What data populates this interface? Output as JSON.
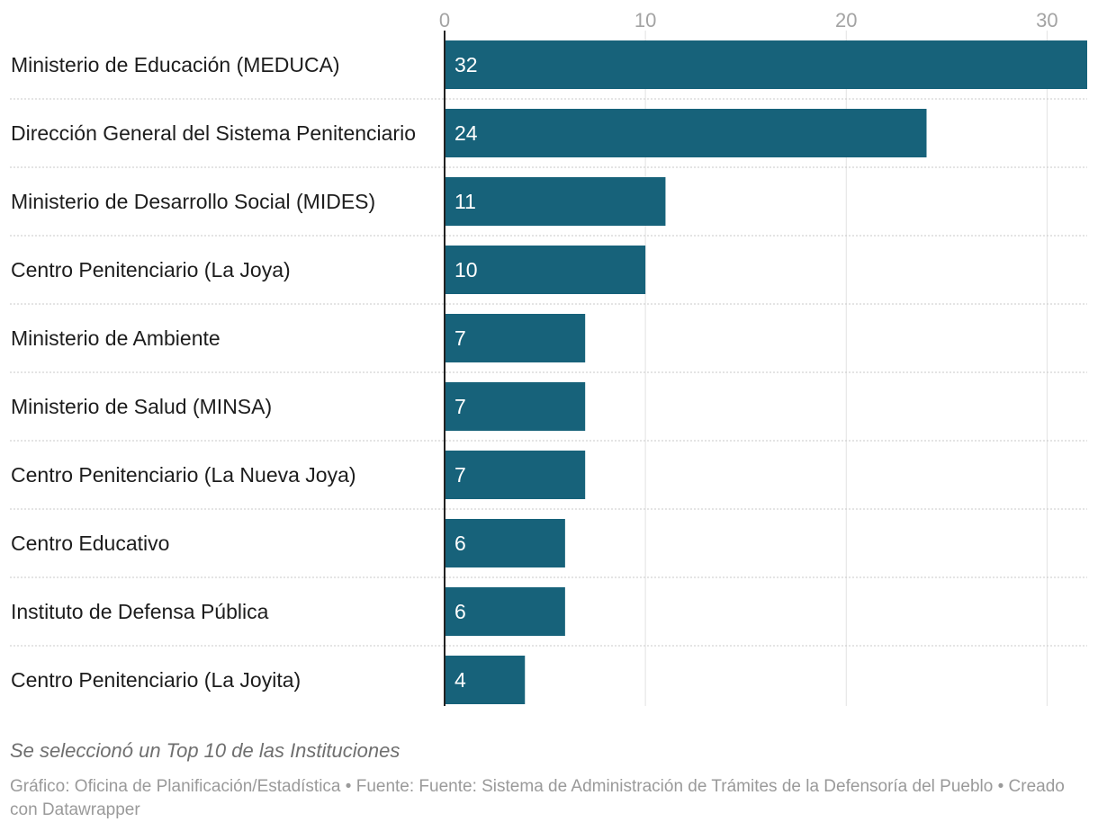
{
  "chart_data": {
    "type": "bar",
    "orientation": "horizontal",
    "categories": [
      "Ministerio de Educación (MEDUCA)",
      "Dirección General del Sistema Penitenciario",
      "Ministerio de Desarrollo Social (MIDES)",
      "Centro Penitenciario (La Joya)",
      "Ministerio de Ambiente",
      "Ministerio de Salud (MINSA)",
      "Centro Penitenciario (La Nueva Joya)",
      "Centro Educativo",
      "Instituto de Defensa Pública",
      "Centro Penitenciario (La Joyita)"
    ],
    "values": [
      32,
      24,
      11,
      10,
      7,
      7,
      7,
      6,
      6,
      4
    ],
    "xlim": [
      0,
      32
    ],
    "x_ticks": [
      0,
      10,
      20,
      30
    ],
    "x_axis_position": "top",
    "grid": true,
    "bar_color": "#17627a",
    "value_labels": "inside-left"
  },
  "notes": "Se seleccionó un Top 10 de las Instituciones",
  "footer": {
    "text": "Gráfico: Oficina de Planificación/Estadística • Fuente: Fuente: Sistema de Administración de Trámites de la Defensoría del Pueblo • Creado con Datawrapper"
  }
}
